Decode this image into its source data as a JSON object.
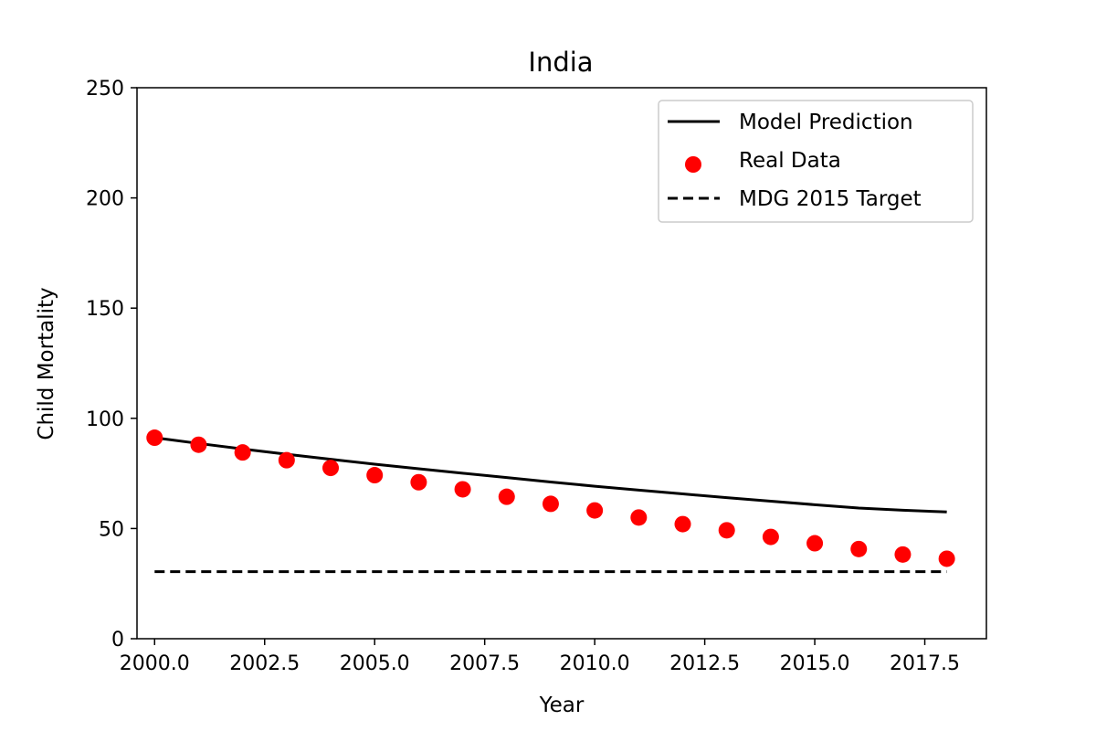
{
  "chart_data": {
    "type": "line",
    "title": "India",
    "xlabel": "Year",
    "ylabel": "Child Mortality",
    "xlim": [
      1999.6,
      2018.9
    ],
    "ylim": [
      0,
      250
    ],
    "xticks": [
      2000.0,
      2002.5,
      2005.0,
      2007.5,
      2010.0,
      2012.5,
      2015.0,
      2017.5
    ],
    "xtick_labels": [
      "2000.0",
      "2002.5",
      "2005.0",
      "2007.5",
      "2010.0",
      "2012.5",
      "2015.0",
      "2017.5"
    ],
    "yticks": [
      0,
      50,
      100,
      150,
      200,
      250
    ],
    "ytick_labels": [
      "0",
      "50",
      "100",
      "150",
      "200",
      "250"
    ],
    "grid": false,
    "legend_position": "top-right",
    "series": [
      {
        "name": "Model Prediction",
        "kind": "line",
        "style": "solid",
        "color": "#000000",
        "x": [
          2000,
          2001,
          2002,
          2003,
          2004,
          2005,
          2006,
          2007,
          2008,
          2009,
          2010,
          2011,
          2012,
          2013,
          2014,
          2015,
          2016,
          2017,
          2018
        ],
        "y": [
          91.2,
          88.6,
          86.1,
          83.7,
          81.4,
          79.2,
          77.1,
          75.1,
          73.1,
          71.1,
          69.2,
          67.4,
          65.7,
          64.0,
          62.4,
          60.8,
          59.3,
          58.3,
          57.5
        ]
      },
      {
        "name": "Real Data",
        "kind": "scatter",
        "color": "#ff0000",
        "x": [
          2000,
          2001,
          2002,
          2003,
          2004,
          2005,
          2006,
          2007,
          2008,
          2009,
          2010,
          2011,
          2012,
          2013,
          2014,
          2015,
          2016,
          2017,
          2018
        ],
        "y": [
          91.2,
          88.0,
          84.5,
          81.0,
          77.5,
          74.2,
          71.0,
          67.8,
          64.4,
          61.2,
          58.2,
          55.0,
          52.0,
          49.2,
          46.2,
          43.3,
          40.7,
          38.2,
          36.3
        ]
      },
      {
        "name": "MDG 2015 Target",
        "kind": "line",
        "style": "dashed",
        "color": "#000000",
        "x": [
          2000,
          2018
        ],
        "y": [
          30.4,
          30.4
        ]
      }
    ]
  }
}
